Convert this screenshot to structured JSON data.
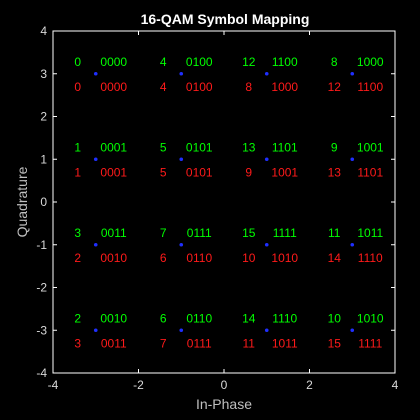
{
  "chart_data": {
    "type": "scatter",
    "title": "16-QAM Symbol Mapping",
    "xlabel": "In-Phase",
    "ylabel": "Quadrature",
    "xlim": [
      -4,
      4
    ],
    "ylim": [
      -4,
      4
    ],
    "xticks": [
      "-4",
      "-2",
      "0",
      "2",
      "4"
    ],
    "yticks": [
      "4",
      "3",
      "2",
      "1",
      "0",
      "-1",
      "-2",
      "-3",
      "-4"
    ],
    "grid": false,
    "colors": {
      "background": "#000000",
      "axes": "#ffffff",
      "marker": "#1f2fff",
      "gray_labels": "#00ff00",
      "binary_labels": "#ff1a1a"
    },
    "points": [
      {
        "x": -3,
        "y": 3,
        "gray_num": "0",
        "gray_bits": "0000",
        "bin_num": "0",
        "bin_bits": "0000"
      },
      {
        "x": -1,
        "y": 3,
        "gray_num": "4",
        "gray_bits": "0100",
        "bin_num": "4",
        "bin_bits": "0100"
      },
      {
        "x": 1,
        "y": 3,
        "gray_num": "12",
        "gray_bits": "1100",
        "bin_num": "8",
        "bin_bits": "1000"
      },
      {
        "x": 3,
        "y": 3,
        "gray_num": "8",
        "gray_bits": "1000",
        "bin_num": "12",
        "bin_bits": "1100"
      },
      {
        "x": -3,
        "y": 1,
        "gray_num": "1",
        "gray_bits": "0001",
        "bin_num": "1",
        "bin_bits": "0001"
      },
      {
        "x": -1,
        "y": 1,
        "gray_num": "5",
        "gray_bits": "0101",
        "bin_num": "5",
        "bin_bits": "0101"
      },
      {
        "x": 1,
        "y": 1,
        "gray_num": "13",
        "gray_bits": "1101",
        "bin_num": "9",
        "bin_bits": "1001"
      },
      {
        "x": 3,
        "y": 1,
        "gray_num": "9",
        "gray_bits": "1001",
        "bin_num": "13",
        "bin_bits": "1101"
      },
      {
        "x": -3,
        "y": -1,
        "gray_num": "3",
        "gray_bits": "0011",
        "bin_num": "2",
        "bin_bits": "0010"
      },
      {
        "x": -1,
        "y": -1,
        "gray_num": "7",
        "gray_bits": "0111",
        "bin_num": "6",
        "bin_bits": "0110"
      },
      {
        "x": 1,
        "y": -1,
        "gray_num": "15",
        "gray_bits": "1111",
        "bin_num": "10",
        "bin_bits": "1010"
      },
      {
        "x": 3,
        "y": -1,
        "gray_num": "11",
        "gray_bits": "1011",
        "bin_num": "14",
        "bin_bits": "1110"
      },
      {
        "x": -3,
        "y": -3,
        "gray_num": "2",
        "gray_bits": "0010",
        "bin_num": "3",
        "bin_bits": "0011"
      },
      {
        "x": -1,
        "y": -3,
        "gray_num": "6",
        "gray_bits": "0110",
        "bin_num": "7",
        "bin_bits": "0111"
      },
      {
        "x": 1,
        "y": -3,
        "gray_num": "14",
        "gray_bits": "1110",
        "bin_num": "11",
        "bin_bits": "1011"
      },
      {
        "x": 3,
        "y": -3,
        "gray_num": "10",
        "gray_bits": "1010",
        "bin_num": "15",
        "bin_bits": "1111"
      }
    ]
  }
}
